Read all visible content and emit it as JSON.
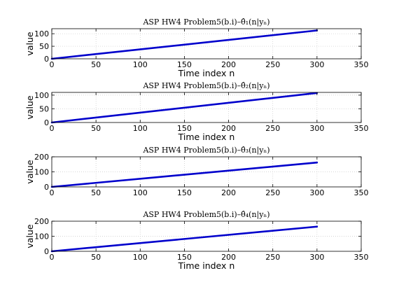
{
  "chart_data": [
    {
      "type": "line",
      "title": "ASP HW4 Problem5(b.i)–θ̂₁(n|yₙ)",
      "xlabel": "Time index n",
      "ylabel": "value",
      "xlim": [
        0,
        350
      ],
      "ylim": [
        0,
        120
      ],
      "xticks": [
        0,
        50,
        100,
        150,
        200,
        250,
        300,
        350
      ],
      "yticks": [
        0,
        50,
        100
      ],
      "grid": true,
      "series": [
        {
          "x": [
            0,
            300
          ],
          "y": [
            0,
            113
          ],
          "color": "#0000cc"
        }
      ]
    },
    {
      "type": "line",
      "title": "ASP HW4 Problem5(b.i)–θ̂₂(n|yₙ)",
      "xlabel": "Time index n",
      "ylabel": "value",
      "xlim": [
        0,
        350
      ],
      "ylim": [
        0,
        110
      ],
      "xticks": [
        0,
        50,
        100,
        150,
        200,
        250,
        300,
        350
      ],
      "yticks": [
        0,
        50,
        100
      ],
      "grid": true,
      "series": [
        {
          "x": [
            0,
            300
          ],
          "y": [
            0,
            108
          ],
          "color": "#0000cc"
        }
      ]
    },
    {
      "type": "line",
      "title": "ASP HW4 Problem5(b.i)–θ̂₃(n|yₙ)",
      "xlabel": "",
      "ylabel": "value",
      "xlim": [
        0,
        350
      ],
      "ylim": [
        0,
        200
      ],
      "xticks": [
        0,
        50,
        100,
        150,
        200,
        250,
        300,
        350
      ],
      "yticks": [
        0,
        100,
        200
      ],
      "grid": true,
      "series": [
        {
          "x": [
            0,
            300
          ],
          "y": [
            0,
            162
          ],
          "color": "#0000cc"
        }
      ]
    },
    {
      "type": "line",
      "title": "ASP HW4 Problem5(b.i)–θ̂₄(n|yₙ)",
      "xlabel": "Time index n",
      "ylabel": "value",
      "xlim": [
        0,
        350
      ],
      "ylim": [
        0,
        200
      ],
      "xticks": [
        0,
        50,
        100,
        150,
        200,
        250,
        300,
        350
      ],
      "yticks": [
        0,
        100,
        200
      ],
      "grid": true,
      "series": [
        {
          "x": [
            0,
            300
          ],
          "y": [
            0,
            164
          ],
          "color": "#0000cc"
        }
      ]
    }
  ]
}
